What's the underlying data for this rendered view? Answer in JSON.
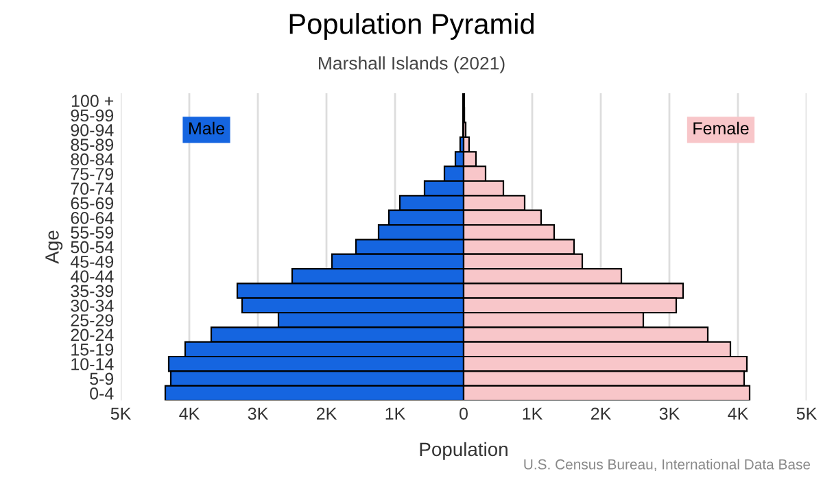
{
  "chart_data": {
    "type": "bar",
    "orientation": "horizontal",
    "title": "Population Pyramid",
    "subtitle": "Marshall Islands (2021)",
    "xlabel": "Population",
    "ylabel": "Age",
    "annotations": [
      "U.S. Census Bureau, International Data Base"
    ],
    "categories": [
      "100 +",
      "95-99",
      "90-94",
      "85-89",
      "80-84",
      "75-79",
      "70-74",
      "65-69",
      "60-64",
      "55-59",
      "50-54",
      "45-49",
      "40-44",
      "35-39",
      "30-34",
      "25-29",
      "20-24",
      "15-19",
      "10-14",
      "5-9",
      "0-4"
    ],
    "series": [
      {
        "name": "Male",
        "color": "#1565e0",
        "values": [
          null,
          null,
          null,
          -50,
          -120,
          -280,
          -570,
          -930,
          -1090,
          -1240,
          -1570,
          -1920,
          -2500,
          -3300,
          -3230,
          -2700,
          -3680,
          -4060,
          -4300,
          -4270,
          -4350
        ]
      },
      {
        "name": "Female",
        "color": "#f8c6c9",
        "values": [
          null,
          10,
          30,
          80,
          180,
          320,
          580,
          890,
          1130,
          1320,
          1610,
          1730,
          2300,
          3200,
          3100,
          2620,
          3560,
          3890,
          4130,
          4090,
          4170
        ]
      }
    ],
    "xlim": [
      -5000,
      5000
    ],
    "xticks": [
      {
        "value": -5000,
        "label": "5K"
      },
      {
        "value": -4000,
        "label": "4K"
      },
      {
        "value": -3000,
        "label": "3K"
      },
      {
        "value": -2000,
        "label": "2K"
      },
      {
        "value": -1000,
        "label": "1K"
      },
      0,
      {
        "value": 1000,
        "label": "1K"
      },
      {
        "value": 2000,
        "label": "2K"
      },
      {
        "value": 3000,
        "label": "3K"
      },
      {
        "value": 4000,
        "label": "4K"
      },
      {
        "value": 5000,
        "label": "5K"
      }
    ],
    "grid": "x",
    "legend": false,
    "stacked": true,
    "ref_lines": [
      {
        "axis": "x",
        "value": 0,
        "color": "#000000"
      }
    ]
  }
}
